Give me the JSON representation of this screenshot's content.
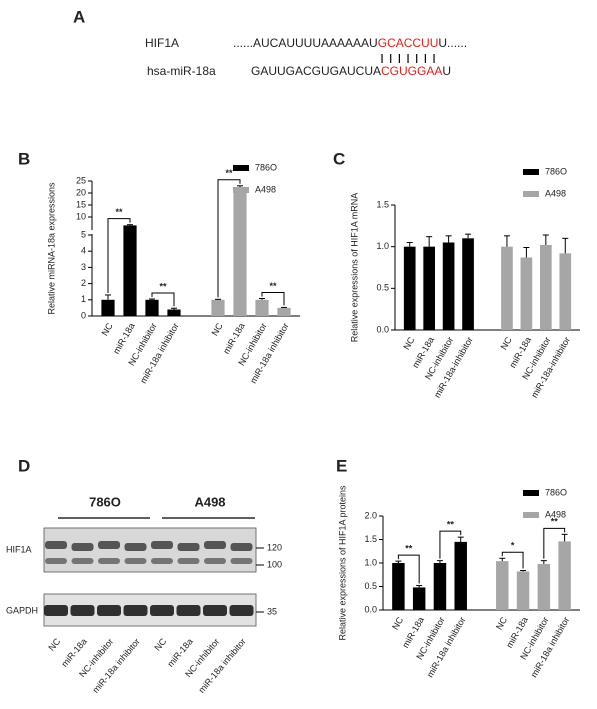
{
  "panel_labels": [
    "A",
    "B",
    "C",
    "D",
    "E"
  ],
  "alignment": {
    "gene": "HIF1A",
    "gene_seq_prefix": "......AUCAUUUUAAAAAAU",
    "gene_seq_match": "GCACCUU",
    "gene_seq_suffix": "U......",
    "mirna": "hsa-miR-18a",
    "mirna_seq_prefix": "GAUUGACGUGAUCUA",
    "mirna_seq_match": "CGUGGAA",
    "mirna_seq_suffix": "U"
  },
  "blot": {
    "cell_lines": [
      "786O",
      "A498"
    ],
    "proteins": [
      "HIF1A",
      "GAPDH"
    ],
    "markers": [
      "120",
      "100",
      "35"
    ],
    "lanes": [
      "NC",
      "miR-18a",
      "NC-inhibitor",
      "miR-18a inhibitor",
      "NC",
      "miR-18a",
      "NC-inhibitor",
      "miR-18a inhibitor"
    ]
  },
  "chart_data": [
    {
      "type": "bar",
      "ylabel": "Relative miRNA-18a expressions",
      "categories": [
        "NC",
        "miR-18a",
        "NC-inhibitor",
        "miR-18a inhibitor",
        "NC",
        "miR-18a",
        "NC-inhibitor",
        "miR-18a inhibitor"
      ],
      "series": [
        {
          "name": "786O",
          "color": "#000000",
          "values": [
            1.0,
            6.5,
            1.0,
            0.4,
            null,
            null,
            null,
            null
          ],
          "errors": [
            0.3,
            0.3,
            0.05,
            0.08,
            null,
            null,
            null,
            null
          ]
        },
        {
          "name": "A498",
          "color": "#a6a6a6",
          "values": [
            null,
            null,
            null,
            null,
            1.0,
            22.5,
            1.0,
            0.5
          ],
          "errors": [
            null,
            null,
            null,
            null,
            0.03,
            0.5,
            0.08,
            0.03
          ]
        }
      ],
      "ylim": [
        0,
        25
      ],
      "yticks": [
        0,
        1,
        2,
        3,
        4,
        5,
        10,
        15,
        20,
        25
      ],
      "ybreak": 5,
      "annotations": [
        "**",
        "**",
        "**",
        "**"
      ]
    },
    {
      "type": "bar",
      "ylabel": "Relative  expressions of HIF1A mRNA",
      "categories": [
        "NC",
        "miR-18a",
        "NC-inhibitor",
        "miR-18a-inhibitor",
        "NC",
        "miR-18a",
        "NC-inhibitor",
        "miR-18a-inhibitor"
      ],
      "series": [
        {
          "name": "786O",
          "color": "#000000",
          "values": [
            1.0,
            1.0,
            1.05,
            1.1,
            null,
            null,
            null,
            null
          ],
          "errors": [
            0.05,
            0.12,
            0.08,
            0.05,
            null,
            null,
            null,
            null
          ]
        },
        {
          "name": "A498",
          "color": "#a6a6a6",
          "values": [
            null,
            null,
            null,
            null,
            1.0,
            0.87,
            1.02,
            0.92
          ],
          "errors": [
            null,
            null,
            null,
            null,
            0.13,
            0.12,
            0.12,
            0.18
          ]
        }
      ],
      "ylim": [
        0,
        1.5
      ],
      "yticks": [
        {
          "value": 0,
          "label": "0.0"
        },
        0.5,
        {
          "value": 1,
          "label": "1.0"
        },
        1.5
      ]
    },
    {
      "type": "bar",
      "ylabel": "Relative expressions of HIF1A proteins",
      "categories": [
        "NC",
        "miR-18a",
        "NC-inhibitor",
        "miR-18a inhibitor",
        "NC",
        "miR-18a",
        "NC-inhibitor",
        "miR-18a inhibitor"
      ],
      "series": [
        {
          "name": "786O",
          "color": "#000000",
          "values": [
            1.0,
            0.48,
            1.0,
            1.45,
            null,
            null,
            null,
            null
          ],
          "errors": [
            0.04,
            0.04,
            0.05,
            0.1,
            null,
            null,
            null,
            null
          ]
        },
        {
          "name": "A498",
          "color": "#a6a6a6",
          "values": [
            null,
            null,
            null,
            null,
            1.04,
            0.82,
            0.98,
            1.46
          ],
          "errors": [
            null,
            null,
            null,
            null,
            0.06,
            0.02,
            0.07,
            0.15
          ]
        }
      ],
      "ylim": [
        0,
        2
      ],
      "yticks": [
        {
          "value": 0,
          "label": "0.0"
        },
        0.5,
        {
          "value": 1,
          "label": "1.0"
        },
        1.5,
        {
          "value": 2,
          "label": "2.0"
        }
      ],
      "annotations": [
        "**",
        "**",
        "*",
        "**"
      ]
    }
  ]
}
